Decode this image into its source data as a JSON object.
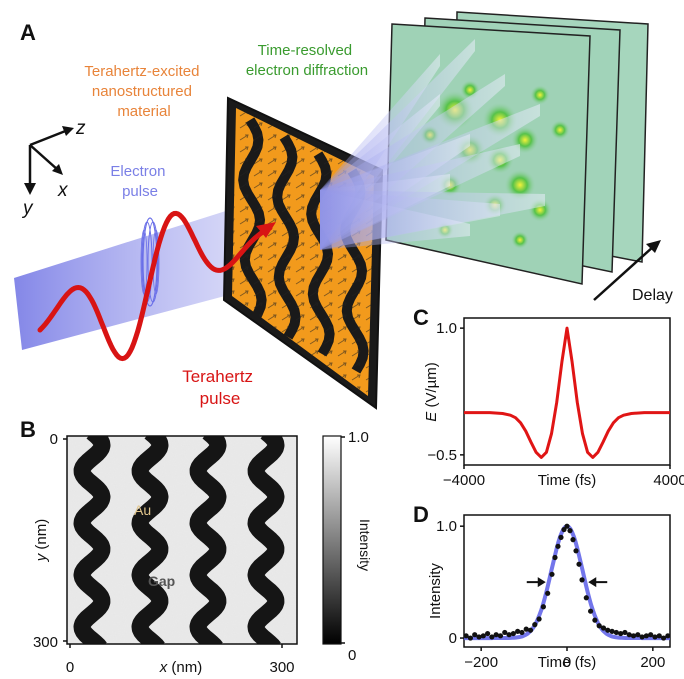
{
  "panels": {
    "a": "A",
    "b": "B",
    "c": "C",
    "d": "D"
  },
  "panel_a": {
    "diffraction_label": [
      "Time-resolved",
      "electron diffraction"
    ],
    "material_label": [
      "Terahertz-excited",
      "nanostructured",
      "material"
    ],
    "electron_label": [
      "Electron",
      "pulse"
    ],
    "thz_label": [
      "Terahertz",
      "pulse"
    ],
    "delay_label": "Delay",
    "axes": {
      "z": "z",
      "x": "x",
      "y": "y"
    },
    "colors": {
      "thz": "#d81414",
      "electron": "#7a7fe6",
      "material_label": "#e8843a",
      "diffraction_label": "#3a9b2f",
      "screen": "#9fd2b6"
    }
  },
  "panel_b": {
    "au_label": "Au",
    "gap_label": "Gap",
    "x_axis_label": "x (nm)",
    "y_axis_label": "y (nm)",
    "x_ticks": [
      "0",
      "300"
    ],
    "y_ticks": [
      "0",
      "300"
    ],
    "colorbar_label": "Intensity",
    "colorbar_ticks": [
      "1.0",
      "0"
    ],
    "colors": {
      "au_label": "#e0c48a",
      "gap_label": "#555555"
    }
  },
  "chart_data": [
    {
      "id": "C",
      "type": "line",
      "xlabel": "Time (fs)",
      "ylabel": "E (V/µm)",
      "ylabel_italic": "E",
      "ylabel_unit": " (V/µm)",
      "xlim": [
        -4000,
        4000
      ],
      "ylim": [
        -0.62,
        1.12
      ],
      "x_ticks": [
        -4000,
        4000
      ],
      "x_tick_labels": [
        "−4000",
        "4000"
      ],
      "y_ticks": [
        1.0,
        -0.5
      ],
      "y_tick_labels": [
        "1.0",
        "−0.5"
      ],
      "grid": false,
      "color": "#e01515",
      "x": [
        -4000,
        -3500,
        -3000,
        -2500,
        -2200,
        -2000,
        -1800,
        -1600,
        -1400,
        -1200,
        -1000,
        -800,
        -600,
        -400,
        -200,
        0,
        200,
        400,
        600,
        800,
        1000,
        1200,
        1400,
        1600,
        1800,
        2000,
        2200,
        2500,
        3000,
        3500,
        4000
      ],
      "y": [
        0.0,
        0.0,
        0.0,
        -0.01,
        -0.03,
        -0.06,
        -0.12,
        -0.22,
        -0.35,
        -0.47,
        -0.53,
        -0.47,
        -0.25,
        0.12,
        0.6,
        1.0,
        0.6,
        0.12,
        -0.25,
        -0.47,
        -0.53,
        -0.47,
        -0.35,
        -0.22,
        -0.12,
        -0.06,
        -0.03,
        -0.01,
        0.0,
        0.0,
        0.0
      ]
    },
    {
      "id": "D",
      "type": "scatter",
      "xlabel": "Time (fs)",
      "ylabel": "Intensity",
      "xlim": [
        -240,
        240
      ],
      "ylim": [
        -0.08,
        1.1
      ],
      "x_ticks": [
        -200,
        0,
        200
      ],
      "x_tick_labels": [
        "−200",
        "0",
        "200"
      ],
      "y_ticks": [
        1.0,
        0
      ],
      "y_tick_labels": [
        "1.0",
        "0"
      ],
      "grid": false,
      "series": [
        {
          "style": "points",
          "color": "#111111",
          "x": [
            -235,
            -225,
            -215,
            -205,
            -195,
            -185,
            -175,
            -165,
            -155,
            -145,
            -135,
            -125,
            -115,
            -105,
            -95,
            -85,
            -75,
            -65,
            -55,
            -45,
            -35,
            -28,
            -21,
            -14,
            -7,
            0,
            7,
            14,
            21,
            28,
            35,
            45,
            55,
            65,
            75,
            85,
            95,
            105,
            115,
            125,
            135,
            145,
            155,
            165,
            175,
            185,
            195,
            205,
            215,
            225,
            235
          ],
          "y": [
            0.02,
            0.0,
            0.03,
            0.01,
            0.02,
            0.04,
            0.01,
            0.03,
            0.02,
            0.05,
            0.03,
            0.04,
            0.06,
            0.05,
            0.08,
            0.07,
            0.12,
            0.17,
            0.28,
            0.4,
            0.57,
            0.72,
            0.82,
            0.9,
            0.97,
            1.0,
            0.96,
            0.88,
            0.78,
            0.66,
            0.52,
            0.36,
            0.24,
            0.16,
            0.11,
            0.09,
            0.07,
            0.06,
            0.05,
            0.04,
            0.05,
            0.03,
            0.02,
            0.03,
            0.01,
            0.02,
            0.03,
            0.01,
            0.02,
            0.0,
            0.02
          ]
        },
        {
          "style": "fit",
          "color": "#5a5ee8",
          "fwhm": 85
        }
      ]
    }
  ]
}
